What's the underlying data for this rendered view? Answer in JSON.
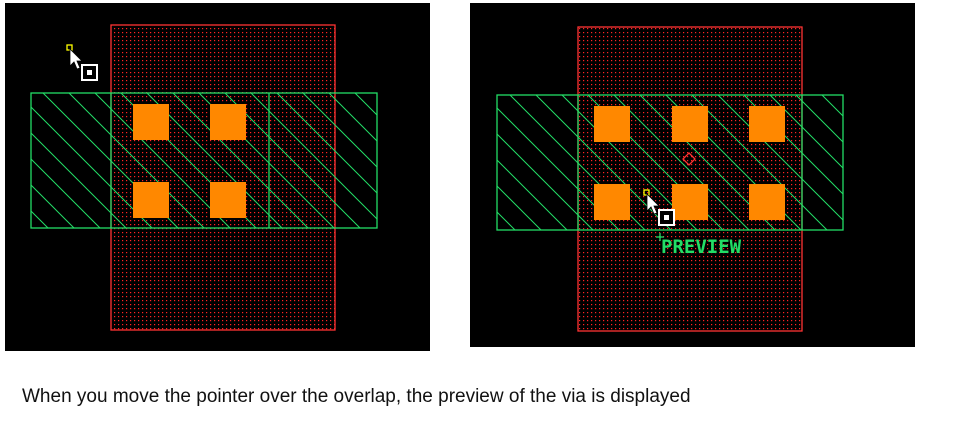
{
  "left_panel": {
    "colors": {
      "background": "#000000",
      "poly_fill": "#ff2222",
      "poly_border": "#ff3333",
      "metal_border": "#22dd66",
      "via": "#ff8800"
    }
  },
  "right_panel": {
    "preview_label": "PREVIEW",
    "colors": {
      "background": "#000000",
      "poly_fill": "#ff2222",
      "poly_border": "#ff3333",
      "metal_border": "#22dd66",
      "via": "#ff8800",
      "preview_text": "#22dd66",
      "preview_marker": "#ff3333"
    }
  },
  "icons": {
    "cursor": "arrow-pointer-with-snap-icon"
  },
  "caption": "When you move the pointer over the overlap, the preview of the via is displayed"
}
